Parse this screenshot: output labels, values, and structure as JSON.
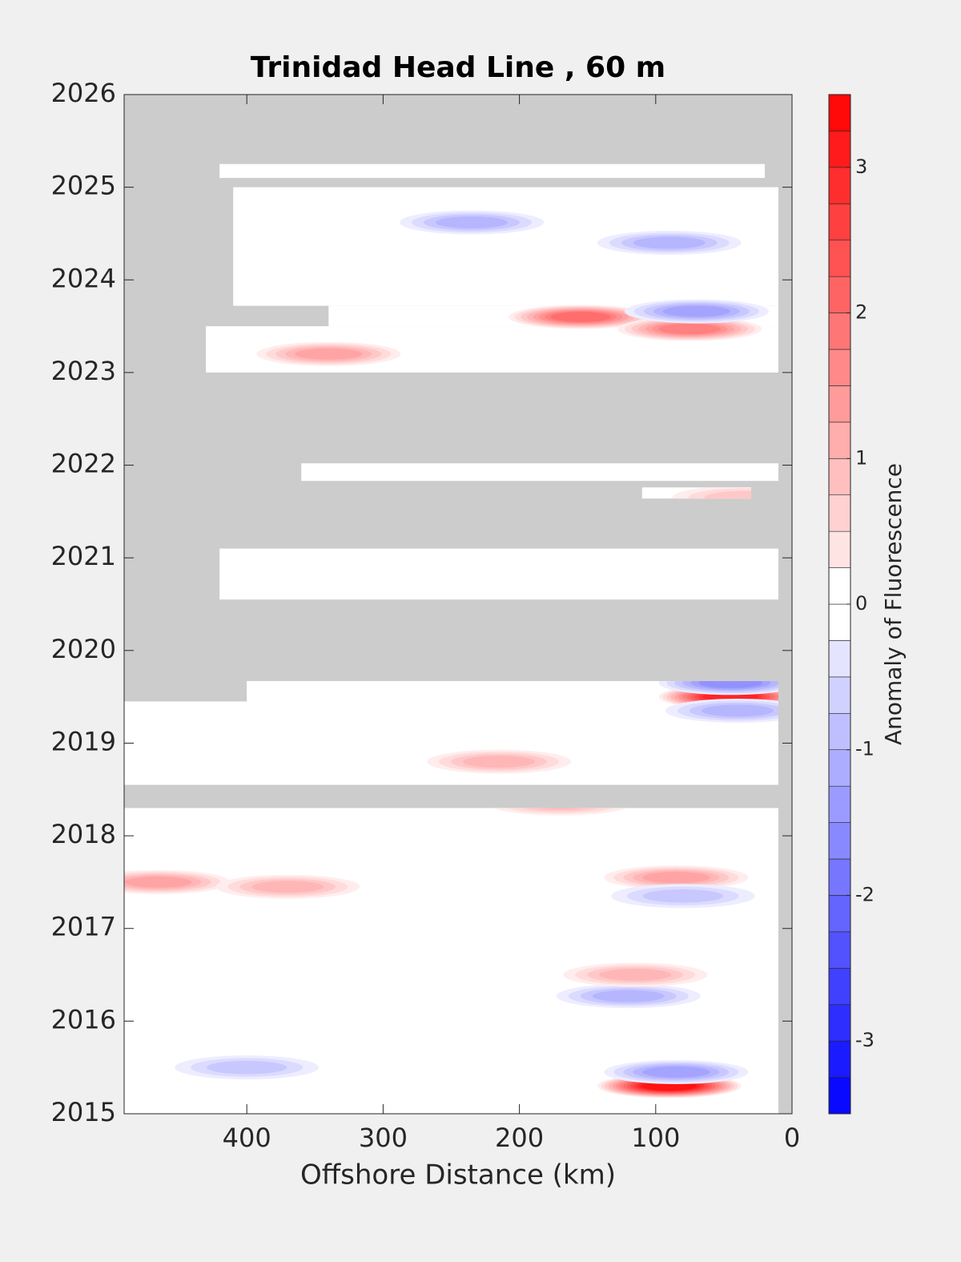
{
  "chart_data": {
    "type": "contour",
    "title": "Trinidad Head Line , 60 m",
    "x_label": "Offshore Distance (km)",
    "colorbar_label": "Anomaly of Fluorescence",
    "xlim": [
      490,
      0
    ],
    "xticks": [
      400,
      300,
      200,
      100,
      0
    ],
    "ylim": [
      2015,
      2026
    ],
    "yticks": [
      2015,
      2016,
      2017,
      2018,
      2019,
      2020,
      2021,
      2022,
      2023,
      2024,
      2025,
      2026
    ],
    "clim": [
      -3.5,
      3.5
    ],
    "colorbar_ticks": [
      -3,
      -2,
      -1,
      0,
      1,
      2,
      3
    ],
    "missing_color": "#cccccc",
    "sampled": [
      {
        "years": [
          2015.0,
          2018.3
        ],
        "x": [
          490,
          10
        ]
      },
      {
        "years": [
          2018.55,
          2019.45
        ],
        "x": [
          490,
          10
        ]
      },
      {
        "years": [
          2019.45,
          2019.67
        ],
        "x": [
          400,
          10
        ]
      },
      {
        "years": [
          2020.55,
          2021.1
        ],
        "x": [
          420,
          10
        ]
      },
      {
        "years": [
          2021.64,
          2021.76
        ],
        "x": [
          110,
          30
        ]
      },
      {
        "years": [
          2021.83,
          2022.02
        ],
        "x": [
          360,
          10
        ]
      },
      {
        "years": [
          2023.0,
          2023.5
        ],
        "x": [
          430,
          10
        ]
      },
      {
        "years": [
          2023.5,
          2023.72
        ],
        "x": [
          340,
          10
        ]
      },
      {
        "years": [
          2023.72,
          2025.0
        ],
        "x": [
          410,
          10
        ]
      },
      {
        "years": [
          2025.1,
          2025.25
        ],
        "x": [
          420,
          20
        ]
      }
    ],
    "x": [
      90,
      85,
      400,
      120,
      115,
      215,
      170,
      45,
      40,
      45,
      155,
      75,
      70,
      340,
      90,
      235,
      465,
      85,
      80,
      35,
      370
    ],
    "y": [
      2015.3,
      2015.45,
      2015.5,
      2016.27,
      2016.5,
      2018.8,
      2018.35,
      2019.5,
      2019.35,
      2019.65,
      2023.6,
      2023.47,
      2023.66,
      2023.2,
      2024.4,
      2024.62,
      2017.5,
      2017.55,
      2017.35,
      2021.65,
      2017.45
    ],
    "values": [
      3.3,
      -1.3,
      -0.8,
      -1.0,
      1.2,
      1.2,
      1.0,
      3.0,
      -1.2,
      -1.5,
      2.2,
      1.8,
      -1.4,
      1.3,
      -1.0,
      -1.0,
      1.3,
      1.4,
      -0.8,
      0.8,
      1.0
    ]
  }
}
